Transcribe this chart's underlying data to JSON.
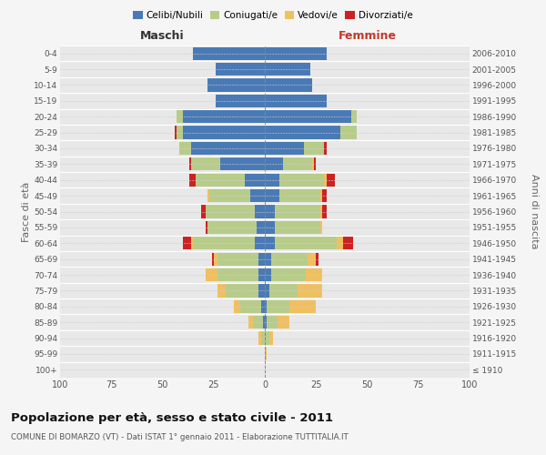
{
  "age_groups": [
    "100+",
    "95-99",
    "90-94",
    "85-89",
    "80-84",
    "75-79",
    "70-74",
    "65-69",
    "60-64",
    "55-59",
    "50-54",
    "45-49",
    "40-44",
    "35-39",
    "30-34",
    "25-29",
    "20-24",
    "15-19",
    "10-14",
    "5-9",
    "0-4"
  ],
  "birth_years": [
    "≤ 1910",
    "1911-1915",
    "1916-1920",
    "1921-1925",
    "1926-1930",
    "1931-1935",
    "1936-1940",
    "1941-1945",
    "1946-1950",
    "1951-1955",
    "1956-1960",
    "1961-1965",
    "1966-1970",
    "1971-1975",
    "1976-1980",
    "1981-1985",
    "1986-1990",
    "1991-1995",
    "1996-2000",
    "2001-2005",
    "2006-2010"
  ],
  "male": {
    "celibi": [
      0,
      0,
      0,
      1,
      2,
      3,
      3,
      3,
      5,
      4,
      5,
      7,
      10,
      22,
      36,
      40,
      40,
      24,
      28,
      24,
      35
    ],
    "coniugati": [
      0,
      0,
      2,
      5,
      10,
      16,
      20,
      20,
      30,
      24,
      24,
      20,
      24,
      14,
      6,
      3,
      3,
      0,
      0,
      0,
      0
    ],
    "vedovi": [
      0,
      0,
      1,
      2,
      3,
      4,
      6,
      2,
      1,
      0,
      0,
      1,
      0,
      0,
      0,
      0,
      0,
      0,
      0,
      0,
      0
    ],
    "divorziati": [
      0,
      0,
      0,
      0,
      0,
      0,
      0,
      1,
      4,
      1,
      2,
      0,
      3,
      1,
      0,
      1,
      0,
      0,
      0,
      0,
      0
    ]
  },
  "female": {
    "nubili": [
      0,
      0,
      0,
      1,
      1,
      2,
      3,
      3,
      5,
      5,
      5,
      7,
      7,
      9,
      19,
      37,
      42,
      30,
      23,
      22,
      30
    ],
    "coniugate": [
      0,
      0,
      2,
      5,
      11,
      14,
      17,
      18,
      30,
      22,
      22,
      20,
      22,
      14,
      10,
      8,
      3,
      0,
      0,
      0,
      0
    ],
    "vedove": [
      0,
      1,
      2,
      6,
      13,
      12,
      8,
      4,
      3,
      1,
      1,
      1,
      1,
      1,
      0,
      0,
      0,
      0,
      0,
      0,
      0
    ],
    "divorziate": [
      0,
      0,
      0,
      0,
      0,
      0,
      0,
      1,
      5,
      0,
      2,
      2,
      4,
      1,
      1,
      0,
      0,
      0,
      0,
      0,
      0
    ]
  },
  "colors": {
    "celibi": "#4a7ab5",
    "coniugati": "#b8cc8a",
    "vedovi": "#f0c060",
    "divorziati": "#cc2222"
  },
  "xlim": 100,
  "title": "Popolazione per età, sesso e stato civile - 2011",
  "subtitle": "COMUNE DI BOMARZO (VT) - Dati ISTAT 1° gennaio 2011 - Elaborazione TUTTITALIA.IT",
  "ylabel_left": "Fasce di età",
  "ylabel_right": "Anni di nascita",
  "xlabel_left": "Maschi",
  "xlabel_right": "Femmine",
  "fig_bg": "#f5f5f5",
  "ax_bg": "#e8e8e8"
}
